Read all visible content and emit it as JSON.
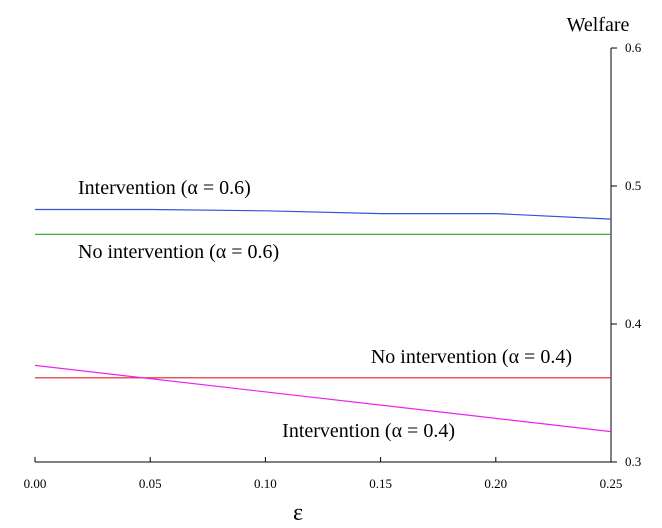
{
  "chart_data": {
    "type": "line",
    "xlabel": "ε",
    "ylabel": "Welfare",
    "xlim": [
      0.0,
      0.25
    ],
    "ylim": [
      0.3,
      0.6
    ],
    "x_ticks": [
      "0.00",
      "0.05",
      "0.10",
      "0.15",
      "0.20",
      "0.25"
    ],
    "y_ticks": [
      "0.3",
      "0.4",
      "0.5",
      "0.6"
    ],
    "series": [
      {
        "name": "Intervention (α = 0.6)",
        "color": "#3355dd",
        "x": [
          0.0,
          0.05,
          0.1,
          0.15,
          0.2,
          0.25
        ],
        "y": [
          0.483,
          0.483,
          0.482,
          0.48,
          0.48,
          0.476
        ]
      },
      {
        "name": "No intervention (α = 0.6)",
        "color": "#22aa22",
        "x": [
          0.0,
          0.25
        ],
        "y": [
          0.465,
          0.465
        ]
      },
      {
        "name": "No intervention (α = 0.4)",
        "color": "#dd2222",
        "x": [
          0.0,
          0.25
        ],
        "y": [
          0.361,
          0.361
        ]
      },
      {
        "name": "Intervention (α = 0.4)",
        "color": "#ee22ee",
        "x": [
          0.0,
          0.25
        ],
        "y": [
          0.37,
          0.322
        ]
      }
    ]
  }
}
